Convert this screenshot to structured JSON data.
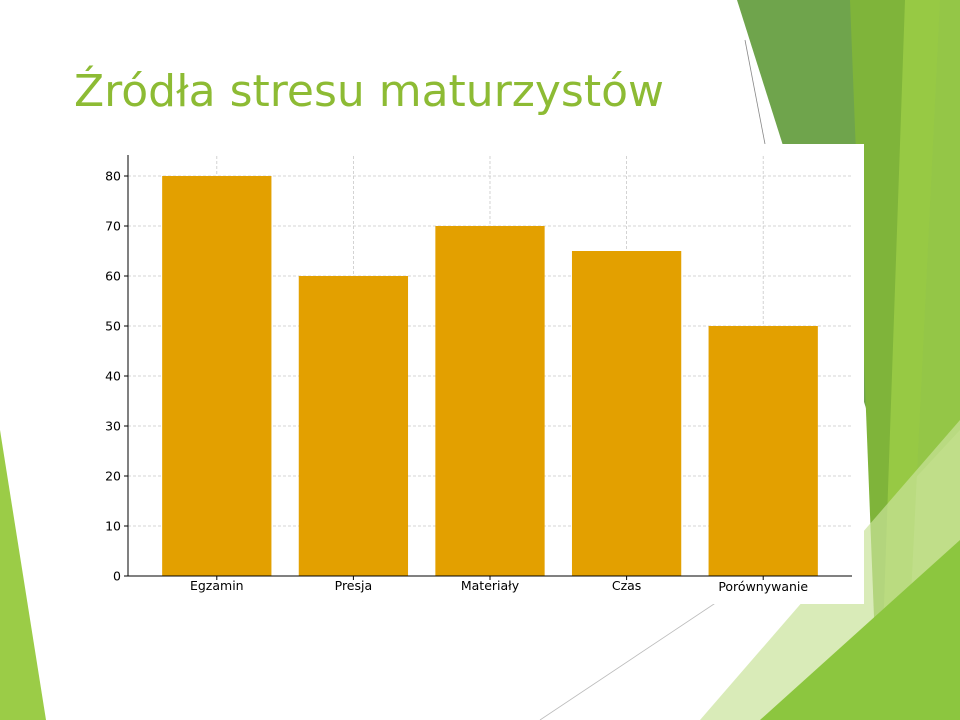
{
  "slide": {
    "title": "Źródła stresu maturzystów"
  },
  "colors": {
    "title": "#8dbb34",
    "bar": "#e3a000",
    "accent_dark_green": "#5f9a38",
    "accent_light_green": "#9bcc47"
  },
  "chart_data": {
    "type": "bar",
    "title": "",
    "xlabel": "",
    "ylabel": "",
    "categories": [
      "Egzamin",
      "Presja",
      "Materiały",
      "Czas",
      "Porównywanie"
    ],
    "values": [
      80,
      60,
      70,
      65,
      50
    ],
    "ylim": [
      0,
      84
    ],
    "yticks": [
      "0",
      "10",
      "20",
      "30",
      "40",
      "50",
      "60",
      "70",
      "80"
    ],
    "grid": true,
    "legend": "none"
  }
}
